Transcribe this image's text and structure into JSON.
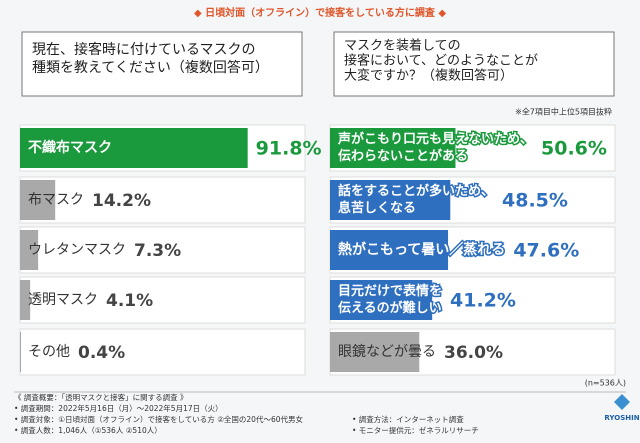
{
  "header": {
    "title": "◆ 日頃対面（オフライン）で接客をしている方に調査 ◆"
  },
  "chart_data": [
    {
      "type": "bar",
      "orientation": "horizontal",
      "title": [
        "現在、接客時に付けているマスクの",
        "種類を教えてください（複数回答可）"
      ],
      "categories": [
        [
          "不織布マスク"
        ],
        [
          "布マスク"
        ],
        [
          "ウレタンマスク"
        ],
        [
          "透明マスク"
        ],
        [
          "その他"
        ]
      ],
      "values": [
        91.8,
        14.2,
        7.3,
        4.1,
        0.4
      ],
      "value_labels": [
        "91.8%",
        "14.2%",
        "7.3%",
        "4.1%",
        "0.4%"
      ],
      "colors": [
        "#1a9a3c",
        "#a9a9a9",
        "#a9a9a9",
        "#a9a9a9",
        "#a9a9a9"
      ],
      "xlim": [
        0,
        100
      ]
    },
    {
      "type": "bar",
      "orientation": "horizontal",
      "title": [
        "マスクを装着しての",
        "接客において、どのようなことが",
        "大変ですか？（複数回答可）"
      ],
      "note": "※全7項目中上位5項目抜粋",
      "categories": [
        [
          "声がこもり口元も見えないため、",
          "伝わらないことがある"
        ],
        [
          "話をすることが多いため、",
          "息苦しくなる"
        ],
        [
          "熱がこもって暑い／蒸れる"
        ],
        [
          "目元だけで表情を",
          "伝えるのが難しい"
        ],
        [
          "眼鏡などが曇る"
        ]
      ],
      "values": [
        50.6,
        48.5,
        47.6,
        41.2,
        36.0
      ],
      "value_labels": [
        "50.6%",
        "48.5%",
        "47.6%",
        "41.2%",
        "36.0%"
      ],
      "colors": [
        "#1a9a3c",
        "#2f6fbf",
        "#2f6fbf",
        "#2f6fbf",
        "#a9a9a9"
      ],
      "xlim": [
        0,
        100
      ]
    }
  ],
  "sample": "(n=536人)",
  "footer": {
    "left": [
      "《 調査概要：「透明マスクと接客」に関する調査 》",
      "• 調査期間：2022年5月16日（月）〜2022年5月17日（火）",
      "• 調査対象：①日頃対面（オフライン）で接客をしている方 ②全国の20代〜60代男女",
      "• 調査人数：1,046人（①536人 ②510人）"
    ],
    "right": [
      "• 調査方法：インターネット調査",
      "• モニター提供元：ゼネラルリサーチ"
    ],
    "logo": "RYOSHIN"
  }
}
